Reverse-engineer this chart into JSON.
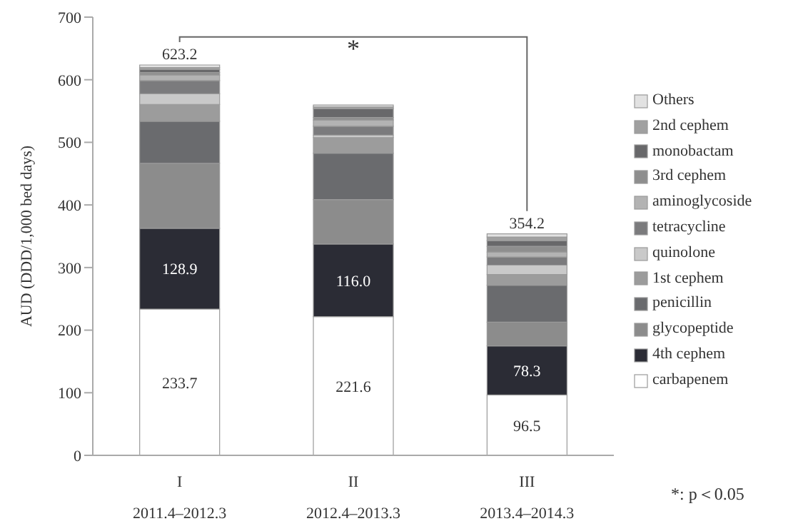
{
  "chart_data": {
    "type": "bar",
    "stacked": true,
    "ylabel": "AUD (DDD/1,000 bed days)",
    "categories": [
      "I\n2011.4–2012.3",
      "II\n2012.4–2013.3",
      "III\n2013.4–2014.3"
    ],
    "series": [
      {
        "name": "carbapenem",
        "color": "#ffffff",
        "values": [
          233.7,
          221.6,
          96.5
        ],
        "value_labels": [
          "233.7",
          "221.6",
          "96.5"
        ]
      },
      {
        "name": "4th cephem",
        "color": "#2b2c35",
        "values": [
          128.9,
          116.0,
          78.3
        ],
        "value_labels": [
          "128.9",
          "116.0",
          "78.3"
        ]
      },
      {
        "name": "glycopeptide",
        "color": "#8c8c8c",
        "values": [
          104,
          71,
          38
        ]
      },
      {
        "name": "penicillin",
        "color": "#6a6b6e",
        "values": [
          67,
          74,
          59
        ]
      },
      {
        "name": "1st cephem",
        "color": "#9c9c9c",
        "values": [
          27,
          25,
          17
        ]
      },
      {
        "name": "quinolone",
        "color": "#c9c9c9",
        "values": [
          17,
          4,
          15
        ]
      },
      {
        "name": "tetracycline",
        "color": "#7b7b7d",
        "values": [
          21,
          14,
          13
        ]
      },
      {
        "name": "aminoglycoside",
        "color": "#b3b3b3",
        "values": [
          9,
          10,
          8
        ]
      },
      {
        "name": "3rd cephem",
        "color": "#8e8e8e",
        "values": [
          4,
          4,
          9
        ]
      },
      {
        "name": "monobactam",
        "color": "#68686a",
        "values": [
          5,
          14,
          9
        ]
      },
      {
        "name": "2nd cephem",
        "color": "#a0a0a0",
        "values": [
          3,
          3,
          6
        ]
      },
      {
        "name": "Others",
        "color": "#e2e2e2",
        "values": [
          4,
          3,
          5
        ]
      }
    ],
    "totals": [
      "623.2",
      null,
      "354.2"
    ],
    "ylim": [
      0,
      700
    ],
    "yticks": [
      0,
      100,
      200,
      300,
      400,
      500,
      600,
      700
    ],
    "grid": false,
    "legend": "right",
    "annotations": [
      "*",
      "*: p＜0.05"
    ]
  }
}
